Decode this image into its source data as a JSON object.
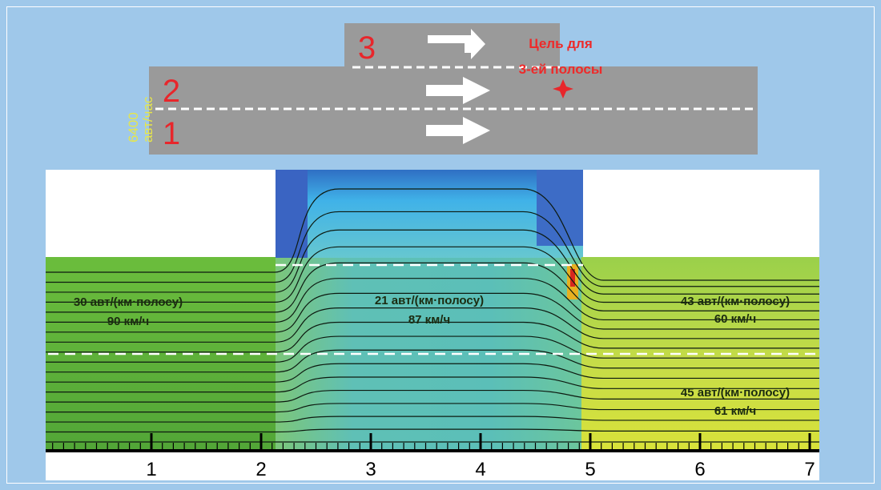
{
  "road": {
    "lane_numbers": [
      "3",
      "2",
      "1"
    ],
    "flow_label_value": "6400",
    "flow_label_unit": "авт/час",
    "target_line1": "Цель для",
    "target_line2": "3-ей полосы"
  },
  "colors": {
    "background": "#9fc8ea",
    "road": "#9a9a9a",
    "lane_number": "#e8262b",
    "target_text": "#ee2a2a",
    "flow_label": "#e6e64a",
    "arrow": "#ffffff"
  },
  "zones": [
    {
      "density": "30 авт/(км·полосу)",
      "speed": "90 км/ч"
    },
    {
      "density": "21 авт/(км·полосу)",
      "speed": "87 км/ч"
    },
    {
      "density": "43 авт/(км·полосу)",
      "speed": "60 км/ч"
    },
    {
      "density": "45 авт/(км·полосу)",
      "speed": "61 км/ч"
    }
  ],
  "axis": {
    "ticks": [
      "1",
      "2",
      "3",
      "4",
      "5",
      "6",
      "7"
    ],
    "x_range": [
      0,
      7
    ]
  },
  "plot": {
    "merge_start": 2.2,
    "merge_end": 4.9,
    "streamline_count": 18
  }
}
